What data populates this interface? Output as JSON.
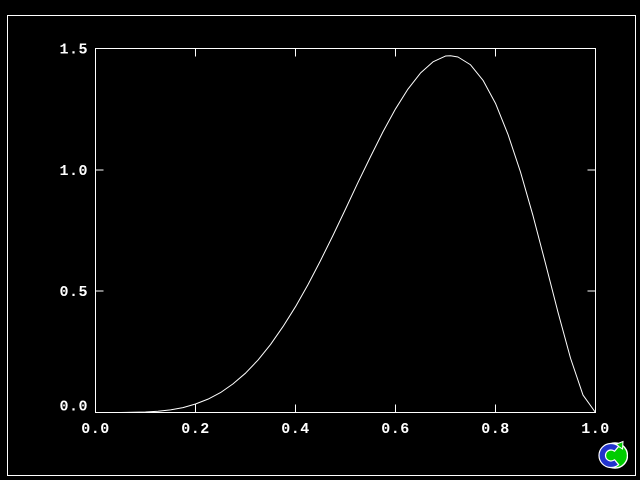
{
  "window": {
    "background_color": "#000000",
    "border_color": "#ffffff"
  },
  "chart_data": {
    "type": "line",
    "title": "",
    "xlabel": "",
    "ylabel": "",
    "xlim": [
      0.0,
      1.0
    ],
    "ylim": [
      0.0,
      1.5
    ],
    "grid": false,
    "legend": "none",
    "axes_color": "#ffffff",
    "line_color": "#ffffff",
    "background_color": "#000000",
    "x_ticks": {
      "values": [
        0.0,
        0.2,
        0.4,
        0.6,
        0.8,
        1.0
      ],
      "labels": [
        "0.0",
        "0.2",
        "0.4",
        "0.6",
        "0.8",
        "1.0"
      ]
    },
    "y_ticks": {
      "values": [
        0.0,
        0.5,
        1.0,
        1.5
      ],
      "labels": [
        "0.0",
        "0.5",
        "1.0",
        "1.5"
      ]
    },
    "ticks_mirrored_all_sides": true,
    "peak": {
      "x": 0.71,
      "y": 1.47
    },
    "series": [
      {
        "name": "curve",
        "x": [
          0,
          0.025,
          0.05,
          0.075,
          0.1,
          0.125,
          0.15,
          0.175,
          0.2,
          0.225,
          0.25,
          0.275,
          0.3,
          0.325,
          0.35,
          0.375,
          0.4,
          0.425,
          0.45,
          0.475,
          0.5,
          0.525,
          0.55,
          0.575,
          0.6,
          0.625,
          0.65,
          0.675,
          0.7,
          0.71,
          0.725,
          0.75,
          0.775,
          0.8,
          0.825,
          0.85,
          0.875,
          0.9,
          0.925,
          0.95,
          0.975,
          1.0
        ],
        "y": [
          0,
          0,
          0,
          0.001,
          0.002,
          0.005,
          0.011,
          0.02,
          0.035,
          0.055,
          0.082,
          0.118,
          0.162,
          0.216,
          0.28,
          0.354,
          0.436,
          0.527,
          0.626,
          0.73,
          0.838,
          0.948,
          1.054,
          1.157,
          1.251,
          1.333,
          1.399,
          1.445,
          1.469,
          1.47,
          1.465,
          1.433,
          1.369,
          1.274,
          1.146,
          0.991,
          0.811,
          0.614,
          0.413,
          0.224,
          0.072,
          0
        ]
      }
    ]
  },
  "logo": {
    "name": "capture-swirl-logo",
    "green_color": "#00cc00",
    "blue_color": "#2233cc",
    "outline_color": "#ffffff"
  }
}
